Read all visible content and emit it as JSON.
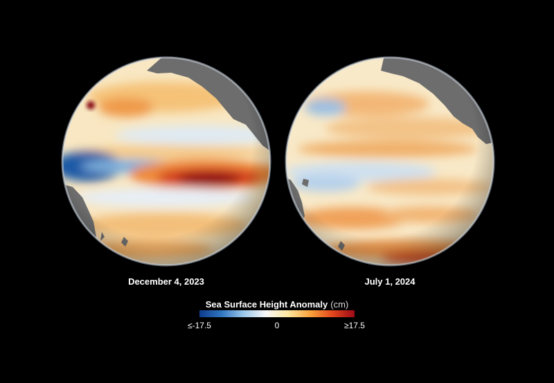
{
  "globes": [
    {
      "date": "December 4, 2023"
    },
    {
      "date": "July 1, 2024"
    }
  ],
  "legend": {
    "title": "Sea Surface Height Anomaly",
    "unit": "(cm)",
    "min_label": "≤-17.5",
    "mid_label": "0",
    "max_label": "≥17.5",
    "min_value": -17.5,
    "max_value": 17.5,
    "colors": [
      "#0d3b8c",
      "#2f76c2",
      "#9cc7ea",
      "#f7f7f7",
      "#fde6a0",
      "#f9a23c",
      "#e2461c",
      "#9e0a17"
    ]
  },
  "colors": {
    "background": "#000000",
    "land": "#6d6d6d",
    "ocean_base": "#f8e7c2"
  }
}
